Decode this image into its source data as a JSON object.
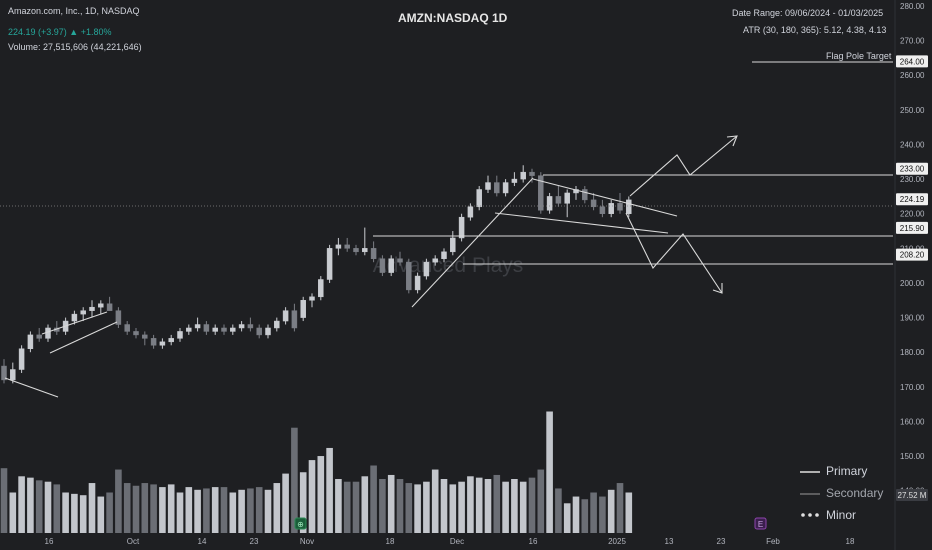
{
  "header": {
    "symbol_line": "Amazon.com, Inc., 1D, NASDAQ",
    "price_line": "224.19 (+3.97) ▲ +1.80%",
    "volume_line": "Volume: 27,515,606 (44,221,646)",
    "chart_title": "AMZN:NASDAQ 1D",
    "date_range": "Date Range: 09/06/2024 - 01/03/2025",
    "atr": "ATR (30, 180, 365): 5.12, 4.38, 4.13",
    "flag_pole_label": "Flag Pole Target"
  },
  "watermark": "Advanced Plays",
  "legend": {
    "primary": "Primary",
    "secondary": "Secondary",
    "minor": "Minor"
  },
  "colors": {
    "background": "#1e1f22",
    "candle": "#c9ccd1",
    "candle_dark": "#7b7e85",
    "volume_light": "#c3c6cc",
    "volume_dark": "#6b6e75",
    "price_up_text": "#26a69a",
    "line": "#d9d9d9"
  },
  "chart_data": {
    "type": "candlestick",
    "ylim": [
      135,
      280
    ],
    "y_ticks": [
      140,
      150,
      160,
      170,
      180,
      190,
      200,
      210,
      220,
      230,
      240,
      250,
      260,
      270,
      280
    ],
    "x_tick_labels": [
      "16",
      "Oct",
      "14",
      "23",
      "Nov",
      "18",
      "Dec",
      "16",
      "2025",
      "13",
      "23",
      "Feb",
      "18"
    ],
    "price_labels": [
      {
        "value": 264.0,
        "text": "264.00"
      },
      {
        "value": 233.0,
        "text": "233.00"
      },
      {
        "value": 224.19,
        "text": "224.19"
      },
      {
        "value": 215.9,
        "text": "215.90"
      },
      {
        "value": 208.2,
        "text": "208.20"
      }
    ],
    "volume_label": "27.52 M",
    "candles": [
      [
        176,
        178,
        171,
        172
      ],
      [
        172,
        177,
        171,
        175
      ],
      [
        175,
        182,
        174,
        181
      ],
      [
        181,
        186,
        180,
        185
      ],
      [
        185,
        187,
        183,
        184
      ],
      [
        184,
        188,
        183,
        187
      ],
      [
        187,
        189,
        185,
        186
      ],
      [
        186,
        190,
        185,
        189
      ],
      [
        189,
        192,
        188,
        191
      ],
      [
        191,
        193,
        189,
        192
      ],
      [
        192,
        195,
        190,
        193
      ],
      [
        193,
        195,
        191,
        194
      ],
      [
        194,
        196,
        192,
        192
      ],
      [
        192,
        193,
        187,
        188
      ],
      [
        188,
        189,
        185,
        186
      ],
      [
        186,
        187,
        184,
        185
      ],
      [
        185,
        186,
        182,
        184
      ],
      [
        184,
        185,
        181,
        182
      ],
      [
        182,
        184,
        181,
        183
      ],
      [
        183,
        185,
        182,
        184
      ],
      [
        184,
        187,
        183,
        186
      ],
      [
        186,
        188,
        185,
        187
      ],
      [
        187,
        190,
        186,
        188
      ],
      [
        188,
        189,
        185,
        186
      ],
      [
        186,
        188,
        185,
        187
      ],
      [
        187,
        188,
        185,
        186
      ],
      [
        186,
        188,
        185,
        187
      ],
      [
        187,
        189,
        186,
        188
      ],
      [
        188,
        190,
        186,
        187
      ],
      [
        187,
        188,
        184,
        185
      ],
      [
        185,
        188,
        184,
        187
      ],
      [
        187,
        190,
        186,
        189
      ],
      [
        189,
        193,
        188,
        192
      ],
      [
        192,
        194,
        186,
        187
      ],
      [
        190,
        196,
        189,
        195
      ],
      [
        195,
        197,
        193,
        196
      ],
      [
        196,
        202,
        195,
        201
      ],
      [
        201,
        211,
        200,
        210
      ],
      [
        210,
        213,
        208,
        211
      ],
      [
        211,
        213,
        209,
        210
      ],
      [
        210,
        211,
        208,
        209
      ],
      [
        209,
        216,
        208,
        210
      ],
      [
        210,
        212,
        206,
        207
      ],
      [
        207,
        208,
        202,
        203
      ],
      [
        203,
        208,
        202,
        207
      ],
      [
        207,
        209,
        205,
        206
      ],
      [
        206,
        207,
        197,
        198
      ],
      [
        198,
        203,
        197,
        202
      ],
      [
        202,
        207,
        201,
        206
      ],
      [
        206,
        208,
        205,
        207
      ],
      [
        207,
        210,
        206,
        209
      ],
      [
        209,
        215,
        208,
        213
      ],
      [
        213,
        220,
        212,
        219
      ],
      [
        219,
        223,
        218,
        222
      ],
      [
        222,
        228,
        221,
        227
      ],
      [
        227,
        231,
        226,
        229
      ],
      [
        229,
        231,
        225,
        226
      ],
      [
        226,
        230,
        225,
        229
      ],
      [
        229,
        232,
        228,
        230
      ],
      [
        230,
        234,
        229,
        232
      ],
      [
        232,
        233,
        229,
        231
      ],
      [
        231,
        232,
        220,
        221
      ],
      [
        221,
        226,
        220,
        225
      ],
      [
        225,
        228,
        222,
        223
      ],
      [
        223,
        227,
        219,
        226
      ],
      [
        226,
        228,
        224,
        227
      ],
      [
        227,
        228,
        223,
        224
      ],
      [
        224,
        226,
        221,
        222
      ],
      [
        222,
        224,
        219,
        220
      ],
      [
        220,
        224,
        219,
        223
      ],
      [
        223,
        226,
        220,
        221
      ],
      [
        220,
        225,
        219,
        224
      ]
    ],
    "volumes": [
      0.48,
      0.3,
      0.42,
      0.41,
      0.39,
      0.38,
      0.36,
      0.3,
      0.29,
      0.28,
      0.37,
      0.27,
      0.3,
      0.47,
      0.37,
      0.35,
      0.37,
      0.36,
      0.34,
      0.36,
      0.3,
      0.34,
      0.32,
      0.33,
      0.34,
      0.34,
      0.3,
      0.32,
      0.33,
      0.34,
      0.32,
      0.37,
      0.44,
      0.78,
      0.45,
      0.54,
      0.57,
      0.63,
      0.4,
      0.38,
      0.38,
      0.42,
      0.5,
      0.4,
      0.43,
      0.4,
      0.37,
      0.36,
      0.38,
      0.47,
      0.4,
      0.36,
      0.38,
      0.42,
      0.41,
      0.4,
      0.43,
      0.38,
      0.4,
      0.38,
      0.41,
      0.47,
      0.9,
      0.33,
      0.22,
      0.27,
      0.25,
      0.3,
      0.27,
      0.32,
      0.37,
      0.3
    ]
  }
}
